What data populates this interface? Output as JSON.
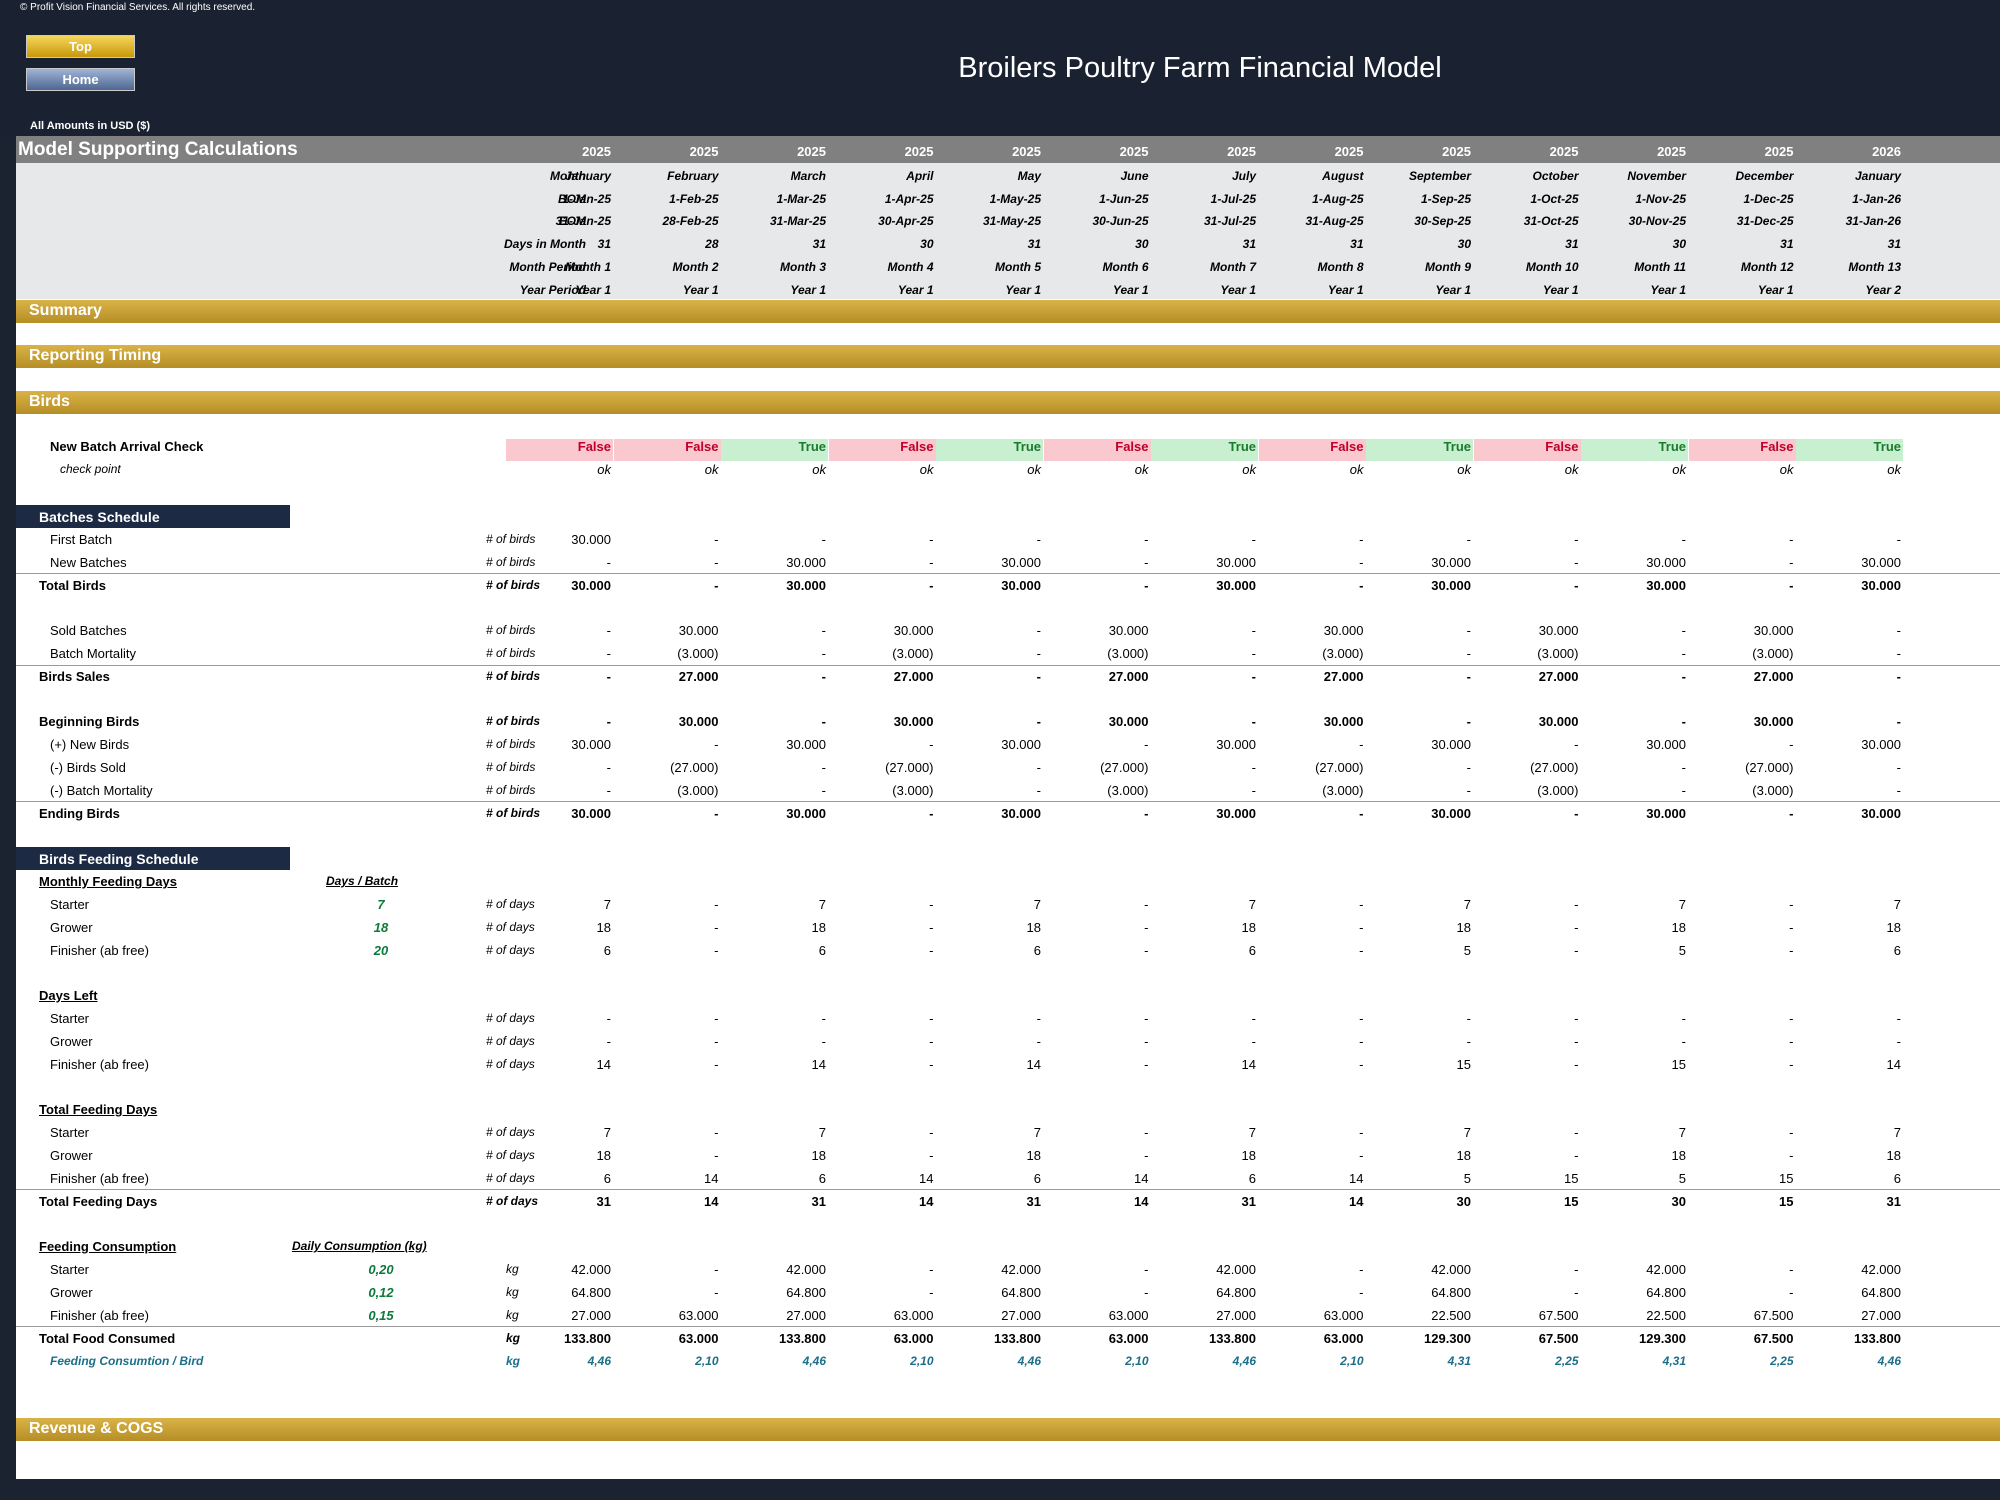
{
  "copyright": "© Profit Vision Financial Services. All rights reserved.",
  "nav": {
    "top_label": "Top",
    "home_label": "Home"
  },
  "title": "Broilers Poultry Farm Financial Model",
  "amounts_label": "All Amounts in  USD ($)",
  "section_title": "Model Supporting Calculations",
  "years": [
    "2025",
    "2025",
    "2025",
    "2025",
    "2025",
    "2025",
    "2025",
    "2025",
    "2025",
    "2025",
    "2025",
    "2025",
    "2026"
  ],
  "header_rows": [
    {
      "label": "Month",
      "values": [
        "January",
        "February",
        "March",
        "April",
        "May",
        "June",
        "July",
        "August",
        "September",
        "October",
        "November",
        "December",
        "January"
      ]
    },
    {
      "label": "BOM",
      "values": [
        "1-Jan-25",
        "1-Feb-25",
        "1-Mar-25",
        "1-Apr-25",
        "1-May-25",
        "1-Jun-25",
        "1-Jul-25",
        "1-Aug-25",
        "1-Sep-25",
        "1-Oct-25",
        "1-Nov-25",
        "1-Dec-25",
        "1-Jan-26"
      ]
    },
    {
      "label": "EOM",
      "values": [
        "31-Jan-25",
        "28-Feb-25",
        "31-Mar-25",
        "30-Apr-25",
        "31-May-25",
        "30-Jun-25",
        "31-Jul-25",
        "31-Aug-25",
        "30-Sep-25",
        "31-Oct-25",
        "30-Nov-25",
        "31-Dec-25",
        "31-Jan-26"
      ]
    },
    {
      "label": "Days in Month",
      "values": [
        "31",
        "28",
        "31",
        "30",
        "31",
        "30",
        "31",
        "31",
        "30",
        "31",
        "30",
        "31",
        "31"
      ]
    },
    {
      "label": "Month Period",
      "values": [
        "Month 1",
        "Month 2",
        "Month 3",
        "Month 4",
        "Month 5",
        "Month 6",
        "Month 7",
        "Month 8",
        "Month 9",
        "Month 10",
        "Month 11",
        "Month 12",
        "Month 13"
      ]
    },
    {
      "label": "Year Period",
      "values": [
        "Year 1",
        "Year 1",
        "Year 1",
        "Year 1",
        "Year 1",
        "Year 1",
        "Year 1",
        "Year 1",
        "Year 1",
        "Year 1",
        "Year 1",
        "Year 1",
        "Year 2"
      ]
    }
  ],
  "bands": {
    "summary": "Summary",
    "reporting": "Reporting Timing",
    "birds": "Birds",
    "revenue": "Revenue & COGS"
  },
  "arrival": {
    "label": "New Batch Arrival Check",
    "values": [
      "False",
      "False",
      "True",
      "False",
      "True",
      "False",
      "True",
      "False",
      "True",
      "False",
      "True",
      "False",
      "True"
    ],
    "check_label": "check point",
    "check_values": [
      "ok",
      "ok",
      "ok",
      "ok",
      "ok",
      "ok",
      "ok",
      "ok",
      "ok",
      "ok",
      "ok",
      "ok",
      "ok"
    ]
  },
  "batches_header": "Batches Schedule",
  "feeding_header": "Birds Feeding Schedule",
  "rows": [
    {
      "label": "First Batch",
      "unit": "# of birds",
      "values": [
        "30.000",
        "-",
        "-",
        "-",
        "-",
        "-",
        "-",
        "-",
        "-",
        "-",
        "-",
        "-",
        "-"
      ]
    },
    {
      "label": "New Batches",
      "unit": "# of birds",
      "values": [
        "-",
        "-",
        "30.000",
        "-",
        "30.000",
        "-",
        "30.000",
        "-",
        "30.000",
        "-",
        "30.000",
        "-",
        "30.000"
      ]
    },
    {
      "label": "Total Birds",
      "unit": "# of birds",
      "values": [
        "30.000",
        "-",
        "30.000",
        "-",
        "30.000",
        "-",
        "30.000",
        "-",
        "30.000",
        "-",
        "30.000",
        "-",
        "30.000"
      ]
    },
    {
      "label": "Sold Batches",
      "unit": "# of birds",
      "values": [
        "-",
        "30.000",
        "-",
        "30.000",
        "-",
        "30.000",
        "-",
        "30.000",
        "-",
        "30.000",
        "-",
        "30.000",
        "-"
      ]
    },
    {
      "label": "Batch Mortality",
      "unit": "# of birds",
      "values": [
        "-",
        "(3.000)",
        "-",
        "(3.000)",
        "-",
        "(3.000)",
        "-",
        "(3.000)",
        "-",
        "(3.000)",
        "-",
        "(3.000)",
        "-"
      ]
    },
    {
      "label": "Birds Sales",
      "unit": "# of birds",
      "values": [
        "-",
        "27.000",
        "-",
        "27.000",
        "-",
        "27.000",
        "-",
        "27.000",
        "-",
        "27.000",
        "-",
        "27.000",
        "-"
      ]
    },
    {
      "label": "Beginning Birds",
      "unit": "# of birds",
      "values": [
        "-",
        "30.000",
        "-",
        "30.000",
        "-",
        "30.000",
        "-",
        "30.000",
        "-",
        "30.000",
        "-",
        "30.000",
        "-"
      ]
    },
    {
      "label": "(+) New Birds",
      "unit": "# of birds",
      "values": [
        "30.000",
        "-",
        "30.000",
        "-",
        "30.000",
        "-",
        "30.000",
        "-",
        "30.000",
        "-",
        "30.000",
        "-",
        "30.000"
      ]
    },
    {
      "label": "(-) Birds Sold",
      "unit": "# of birds",
      "values": [
        "-",
        "(27.000)",
        "-",
        "(27.000)",
        "-",
        "(27.000)",
        "-",
        "(27.000)",
        "-",
        "(27.000)",
        "-",
        "(27.000)",
        "-"
      ]
    },
    {
      "label": "(-) Batch Mortality",
      "unit": "# of birds",
      "values": [
        "-",
        "(3.000)",
        "-",
        "(3.000)",
        "-",
        "(3.000)",
        "-",
        "(3.000)",
        "-",
        "(3.000)",
        "-",
        "(3.000)",
        "-"
      ]
    },
    {
      "label": "Ending Birds",
      "unit": "# of birds",
      "values": [
        "30.000",
        "-",
        "30.000",
        "-",
        "30.000",
        "-",
        "30.000",
        "-",
        "30.000",
        "-",
        "30.000",
        "-",
        "30.000"
      ]
    }
  ],
  "feeding": {
    "monthly_title": "Monthly Feeding Days",
    "days_batch_title": "Days / Batch",
    "monthly": [
      {
        "label": "Starter",
        "param": "7",
        "unit": "# of days",
        "values": [
          "7",
          "-",
          "7",
          "-",
          "7",
          "-",
          "7",
          "-",
          "7",
          "-",
          "7",
          "-",
          "7"
        ]
      },
      {
        "label": "Grower",
        "param": "18",
        "unit": "# of days",
        "values": [
          "18",
          "-",
          "18",
          "-",
          "18",
          "-",
          "18",
          "-",
          "18",
          "-",
          "18",
          "-",
          "18"
        ]
      },
      {
        "label": "Finisher (ab free)",
        "param": "20",
        "unit": "# of days",
        "values": [
          "6",
          "-",
          "6",
          "-",
          "6",
          "-",
          "6",
          "-",
          "5",
          "-",
          "5",
          "-",
          "6"
        ]
      }
    ],
    "days_left_title": "Days Left",
    "days_left": [
      {
        "label": "Starter",
        "unit": "# of days",
        "values": [
          "-",
          "-",
          "-",
          "-",
          "-",
          "-",
          "-",
          "-",
          "-",
          "-",
          "-",
          "-",
          "-"
        ]
      },
      {
        "label": "Grower",
        "unit": "# of days",
        "values": [
          "-",
          "-",
          "-",
          "-",
          "-",
          "-",
          "-",
          "-",
          "-",
          "-",
          "-",
          "-",
          "-"
        ]
      },
      {
        "label": "Finisher (ab free)",
        "unit": "# of days",
        "values": [
          "14",
          "-",
          "14",
          "-",
          "14",
          "-",
          "14",
          "-",
          "15",
          "-",
          "15",
          "-",
          "14"
        ]
      }
    ],
    "total_title": "Total Feeding Days",
    "total": [
      {
        "label": "Starter",
        "unit": "# of days",
        "values": [
          "7",
          "-",
          "7",
          "-",
          "7",
          "-",
          "7",
          "-",
          "7",
          "-",
          "7",
          "-",
          "7"
        ]
      },
      {
        "label": "Grower",
        "unit": "# of days",
        "values": [
          "18",
          "-",
          "18",
          "-",
          "18",
          "-",
          "18",
          "-",
          "18",
          "-",
          "18",
          "-",
          "18"
        ]
      },
      {
        "label": "Finisher (ab free)",
        "unit": "# of days",
        "values": [
          "6",
          "14",
          "6",
          "14",
          "6",
          "14",
          "6",
          "14",
          "5",
          "15",
          "5",
          "15",
          "6"
        ]
      }
    ],
    "total_sum": {
      "label": "Total Feeding Days",
      "unit": "# of days",
      "values": [
        "31",
        "14",
        "31",
        "14",
        "31",
        "14",
        "31",
        "14",
        "30",
        "15",
        "30",
        "15",
        "31"
      ]
    },
    "consumption_title": "Feeding Consumption",
    "daily_title": "Daily Consumption (kg)",
    "consumption": [
      {
        "label": "Starter",
        "param": "0,20",
        "unit": "kg",
        "values": [
          "42.000",
          "-",
          "42.000",
          "-",
          "42.000",
          "-",
          "42.000",
          "-",
          "42.000",
          "-",
          "42.000",
          "-",
          "42.000"
        ]
      },
      {
        "label": "Grower",
        "param": "0,12",
        "unit": "kg",
        "values": [
          "64.800",
          "-",
          "64.800",
          "-",
          "64.800",
          "-",
          "64.800",
          "-",
          "64.800",
          "-",
          "64.800",
          "-",
          "64.800"
        ]
      },
      {
        "label": "Finisher (ab free)",
        "param": "0,15",
        "unit": "kg",
        "values": [
          "27.000",
          "63.000",
          "27.000",
          "63.000",
          "27.000",
          "63.000",
          "27.000",
          "63.000",
          "22.500",
          "67.500",
          "22.500",
          "67.500",
          "27.000"
        ]
      }
    ],
    "food_total": {
      "label": "Total Food Consumed",
      "unit": "kg",
      "values": [
        "133.800",
        "63.000",
        "133.800",
        "63.000",
        "133.800",
        "63.000",
        "133.800",
        "63.000",
        "129.300",
        "67.500",
        "129.300",
        "67.500",
        "133.800"
      ]
    },
    "per_bird": {
      "label": "Feeding Consumtion / Bird",
      "unit": "kg",
      "values": [
        "4,46",
        "2,10",
        "4,46",
        "2,10",
        "4,46",
        "2,10",
        "4,46",
        "2,10",
        "4,31",
        "2,25",
        "4,31",
        "2,25",
        "4,46"
      ]
    }
  },
  "colors": {
    "false_bg": "#f9c9cf",
    "true_bg": "#c8efcf",
    "band": "#c9a235",
    "navy": "#1d2a44"
  }
}
